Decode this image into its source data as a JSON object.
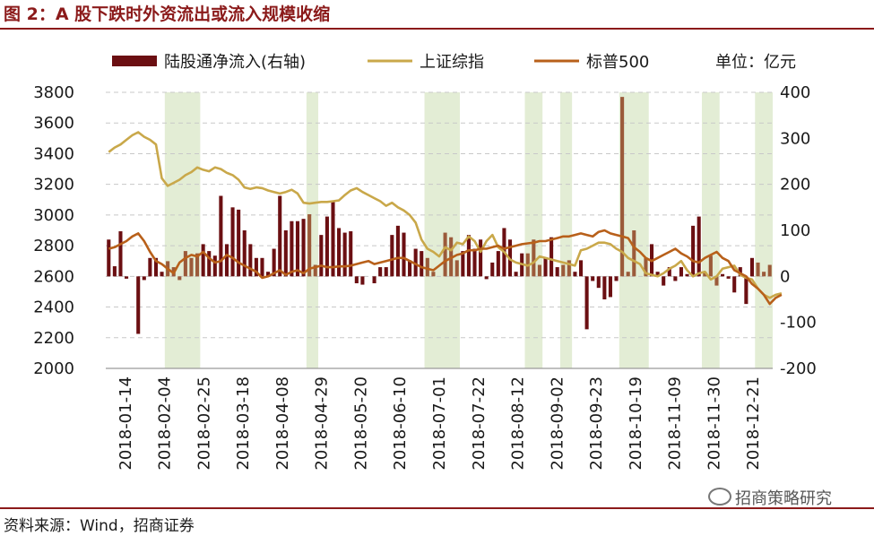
{
  "figure": {
    "title": "图 2：A 股下跌时外资流出或流入规模收缩",
    "source": "资料来源：Wind，招商证券",
    "watermark": "招商策略研究"
  },
  "colors": {
    "bars": "#6b0f12",
    "bars_shaded": "#9b5a3a",
    "shanghai": "#c9a84a",
    "sp500": "#b8601a",
    "shade": "#e3edd5",
    "grid": "#c8c8c8"
  },
  "chart_data": {
    "type": "bar+line",
    "unit_label": "单位：亿元",
    "x_tick_labels": [
      "2018-01-14",
      "2018-02-04",
      "2018-02-25",
      "2018-03-18",
      "2018-04-08",
      "2018-04-29",
      "2018-05-20",
      "2018-06-10",
      "2018-07-01",
      "2018-07-22",
      "2018-08-12",
      "2018-09-02",
      "2018-09-23",
      "2018-10-19",
      "2018-11-09",
      "2018-11-30",
      "2018-12-21"
    ],
    "y_left": {
      "min": 2000,
      "max": 3800,
      "ticks": [
        2000,
        2200,
        2400,
        2600,
        2800,
        3000,
        3200,
        3400,
        3600,
        3800
      ]
    },
    "y_right": {
      "min": -200,
      "max": 400,
      "ticks": [
        -200,
        -100,
        0,
        100,
        200,
        300,
        400
      ]
    },
    "grid": true,
    "legend_position": "top",
    "shaded_periods_weeks": [
      [
        10,
        15
      ],
      [
        34,
        35
      ],
      [
        54,
        59
      ],
      [
        71,
        73
      ],
      [
        77,
        78
      ],
      [
        87,
        91
      ],
      [
        101,
        103
      ],
      [
        110,
        112
      ]
    ],
    "series": [
      {
        "name": "陆股通净流入(右轴)",
        "kind": "bar",
        "axis": "right",
        "values": [
          80,
          22,
          98,
          -5,
          0,
          -125,
          -8,
          40,
          40,
          10,
          33,
          20,
          -8,
          55,
          40,
          50,
          70,
          55,
          45,
          175,
          70,
          150,
          145,
          100,
          70,
          40,
          40,
          10,
          60,
          175,
          100,
          120,
          120,
          125,
          135,
          25,
          90,
          130,
          165,
          105,
          95,
          98,
          -15,
          -18,
          0,
          -15,
          20,
          20,
          90,
          110,
          95,
          35,
          60,
          55,
          40,
          10,
          0,
          95,
          85,
          35,
          55,
          90,
          60,
          80,
          -6,
          30,
          55,
          105,
          80,
          10,
          50,
          50,
          80,
          25,
          40,
          85,
          20,
          25,
          35,
          10,
          35,
          -115,
          -10,
          -25,
          -50,
          -45,
          -10,
          390,
          10,
          100,
          0,
          40,
          70,
          10,
          -20,
          20,
          -10,
          20,
          5,
          110,
          130,
          10,
          45,
          -20,
          5,
          -5,
          -35,
          20,
          -60,
          40,
          30,
          10,
          25
        ]
      },
      {
        "name": "上证综指",
        "kind": "line",
        "axis": "left",
        "values": [
          3410,
          3440,
          3460,
          3490,
          3520,
          3540,
          3510,
          3490,
          3460,
          3240,
          3190,
          3210,
          3230,
          3260,
          3280,
          3310,
          3295,
          3285,
          3310,
          3300,
          3275,
          3260,
          3230,
          3180,
          3170,
          3180,
          3175,
          3160,
          3150,
          3140,
          3150,
          3165,
          3140,
          3080,
          3075,
          3080,
          3085,
          3085,
          3090,
          3095,
          3130,
          3160,
          3175,
          3150,
          3130,
          3110,
          3090,
          3060,
          3080,
          3050,
          3030,
          3000,
          2950,
          2840,
          2780,
          2760,
          2730,
          2790,
          2770,
          2820,
          2810,
          2860,
          2830,
          2760,
          2830,
          2870,
          2790,
          2760,
          2710,
          2690,
          2680,
          2670,
          2690,
          2730,
          2720,
          2710,
          2700,
          2690,
          2680,
          2670,
          2770,
          2780,
          2800,
          2820,
          2820,
          2810,
          2780,
          2760,
          2720,
          2700,
          2680,
          2620,
          2610,
          2600,
          2620,
          2650,
          2670,
          2700,
          2640,
          2600,
          2620,
          2630,
          2580,
          2600,
          2650,
          2660,
          2670,
          2610,
          2590,
          2580,
          2520,
          2480,
          2460,
          2480,
          2490
        ]
      },
      {
        "name": "标普500",
        "kind": "line",
        "axis": "left",
        "values": [
          2780,
          2790,
          2810,
          2830,
          2860,
          2880,
          2830,
          2760,
          2700,
          2680,
          2650,
          2620,
          2690,
          2720,
          2740,
          2730,
          2760,
          2720,
          2690,
          2700,
          2740,
          2720,
          2690,
          2670,
          2650,
          2630,
          2590,
          2600,
          2620,
          2640,
          2610,
          2630,
          2640,
          2620,
          2650,
          2660,
          2670,
          2660,
          2660,
          2665,
          2665,
          2670,
          2680,
          2690,
          2700,
          2680,
          2690,
          2700,
          2710,
          2720,
          2720,
          2700,
          2680,
          2660,
          2650,
          2640,
          2670,
          2700,
          2720,
          2740,
          2750,
          2770,
          2770,
          2780,
          2780,
          2790,
          2800,
          2780,
          2790,
          2800,
          2810,
          2815,
          2820,
          2830,
          2830,
          2840,
          2850,
          2860,
          2860,
          2870,
          2880,
          2870,
          2860,
          2890,
          2900,
          2880,
          2870,
          2860,
          2850,
          2790,
          2760,
          2720,
          2700,
          2720,
          2740,
          2760,
          2780,
          2750,
          2730,
          2700,
          2690,
          2720,
          2740,
          2760,
          2720,
          2700,
          2640,
          2620,
          2600,
          2550,
          2520,
          2480,
          2420,
          2460,
          2480
        ]
      }
    ]
  }
}
